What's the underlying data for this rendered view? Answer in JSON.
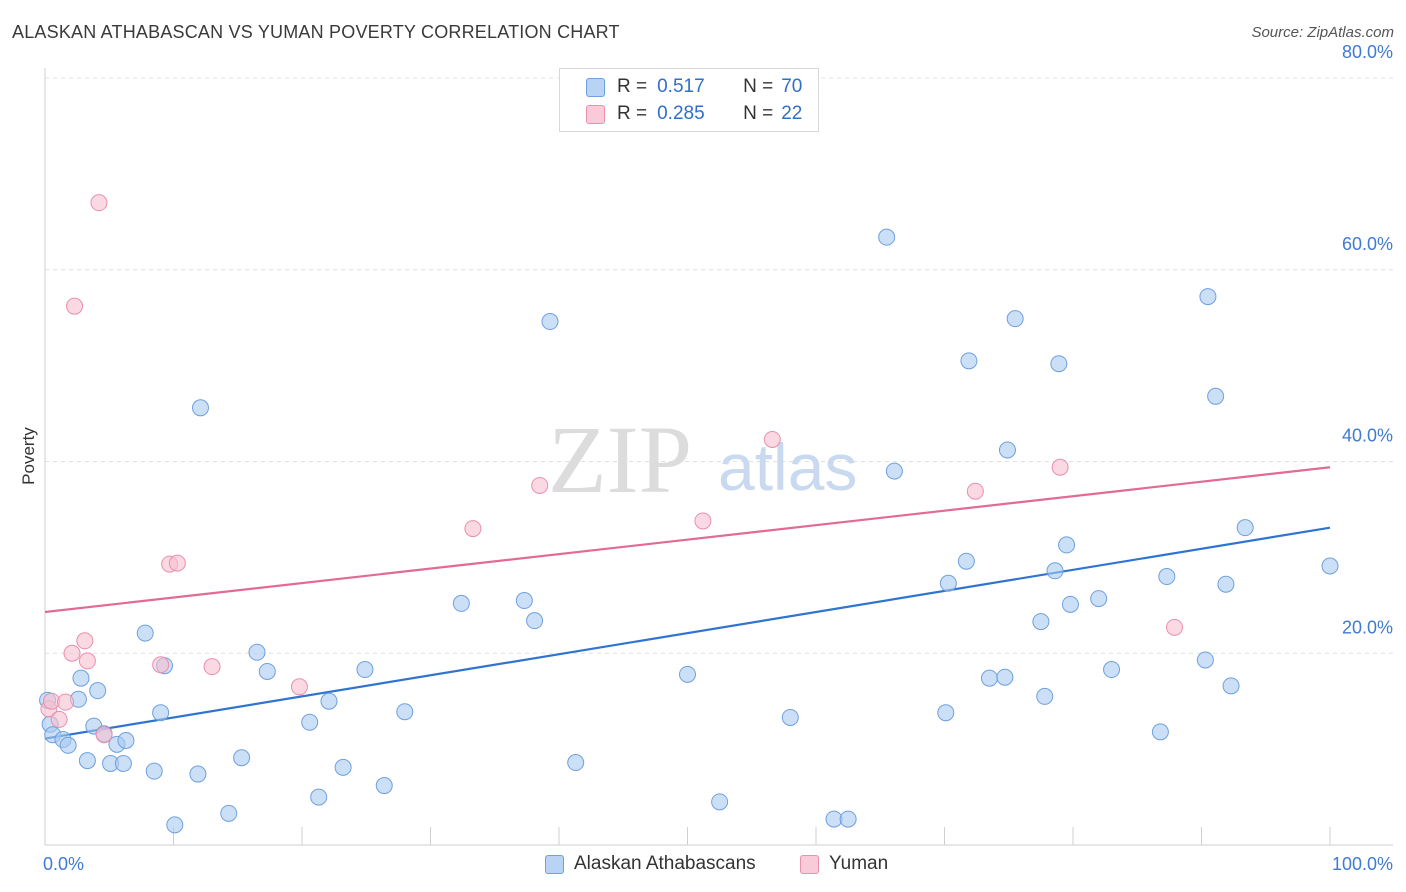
{
  "title": "ALASKAN ATHABASCAN VS YUMAN POVERTY CORRELATION CHART",
  "source": "Source: ZipAtlas.com",
  "watermark": {
    "zip": "ZIP",
    "atlas": "atlas"
  },
  "legend": {
    "rows": [
      {
        "r_label": "R =",
        "r_value": "0.517",
        "n_label": "N =",
        "n_value": "70"
      },
      {
        "r_label": "R =",
        "r_value": "0.285",
        "n_label": "N =",
        "n_value": "22"
      }
    ]
  },
  "bottom_legend": {
    "series1": "Alaskan Athabascans",
    "series2": "Yuman"
  },
  "colors": {
    "series1_fill": "#a9c9f0",
    "series1_stroke": "#6fa0df",
    "series1_line": "#2f74d0",
    "series2_fill": "#f7bfd0",
    "series2_stroke": "#ea8fae",
    "series2_line": "#e26a95",
    "axis_label": "#3f7ad3",
    "grid": "#e0e0e0"
  },
  "chart_data": {
    "type": "scatter",
    "title": "ALASKAN ATHABASCAN VS YUMAN POVERTY CORRELATION CHART",
    "xlabel": "",
    "ylabel": "Poverty",
    "xlim": [
      0,
      100
    ],
    "ylim": [
      0,
      80
    ],
    "x_tick_labels": [
      "0.0%",
      "100.0%"
    ],
    "y_ticks": [
      20,
      40,
      60,
      80
    ],
    "y_tick_labels": [
      "20.0%",
      "40.0%",
      "60.0%",
      "80.0%"
    ],
    "series": [
      {
        "name": "Alaskan Athabascans",
        "r": 0.517,
        "n": 70,
        "trend": {
          "x": [
            0,
            100
          ],
          "y": [
            11.1,
            33.1
          ]
        },
        "points": [
          [
            0.2,
            15.1
          ],
          [
            0.4,
            12.6
          ],
          [
            0.6,
            11.5
          ],
          [
            1.4,
            11.0
          ],
          [
            1.8,
            10.4
          ],
          [
            2.6,
            15.2
          ],
          [
            2.8,
            17.4
          ],
          [
            3.3,
            8.8
          ],
          [
            3.8,
            12.4
          ],
          [
            4.1,
            16.1
          ],
          [
            4.6,
            11.6
          ],
          [
            5.1,
            8.5
          ],
          [
            5.6,
            10.5
          ],
          [
            6.1,
            8.5
          ],
          [
            6.3,
            10.9
          ],
          [
            7.8,
            22.1
          ],
          [
            8.5,
            7.7
          ],
          [
            9.0,
            13.8
          ],
          [
            9.3,
            18.7
          ],
          [
            10.1,
            2.1
          ],
          [
            11.9,
            7.4
          ],
          [
            12.1,
            45.6
          ],
          [
            14.3,
            3.3
          ],
          [
            15.3,
            9.1
          ],
          [
            16.5,
            20.1
          ],
          [
            17.3,
            18.1
          ],
          [
            20.6,
            12.8
          ],
          [
            21.3,
            5.0
          ],
          [
            22.1,
            15.0
          ],
          [
            23.2,
            8.1
          ],
          [
            24.9,
            18.3
          ],
          [
            26.4,
            6.2
          ],
          [
            28.0,
            13.9
          ],
          [
            32.4,
            25.2
          ],
          [
            37.3,
            25.5
          ],
          [
            38.1,
            23.4
          ],
          [
            39.3,
            54.6
          ],
          [
            41.3,
            8.6
          ],
          [
            50.0,
            17.8
          ],
          [
            52.5,
            4.5
          ],
          [
            58.0,
            13.3
          ],
          [
            61.4,
            2.7
          ],
          [
            62.5,
            2.7
          ],
          [
            65.5,
            63.4
          ],
          [
            66.1,
            39.0
          ],
          [
            70.1,
            13.8
          ],
          [
            70.3,
            27.3
          ],
          [
            71.7,
            29.6
          ],
          [
            71.9,
            50.5
          ],
          [
            73.5,
            17.4
          ],
          [
            74.7,
            17.5
          ],
          [
            74.9,
            41.2
          ],
          [
            75.5,
            54.9
          ],
          [
            77.5,
            23.3
          ],
          [
            77.8,
            15.5
          ],
          [
            78.6,
            28.6
          ],
          [
            78.9,
            50.2
          ],
          [
            79.5,
            31.3
          ],
          [
            79.8,
            25.1
          ],
          [
            82.0,
            25.7
          ],
          [
            83.0,
            18.3
          ],
          [
            86.8,
            11.8
          ],
          [
            87.3,
            28.0
          ],
          [
            90.3,
            19.3
          ],
          [
            90.5,
            57.2
          ],
          [
            91.1,
            46.8
          ],
          [
            91.9,
            27.2
          ],
          [
            92.3,
            16.6
          ],
          [
            93.4,
            33.1
          ],
          [
            100.0,
            29.1
          ]
        ]
      },
      {
        "name": "Yuman",
        "r": 0.285,
        "n": 22,
        "trend": {
          "x": [
            0,
            100
          ],
          "y": [
            24.3,
            39.4
          ]
        },
        "points": [
          [
            0.3,
            14.2
          ],
          [
            0.5,
            15.0
          ],
          [
            1.1,
            13.1
          ],
          [
            1.6,
            14.9
          ],
          [
            2.1,
            20.0
          ],
          [
            2.3,
            56.2
          ],
          [
            3.1,
            21.3
          ],
          [
            3.3,
            19.2
          ],
          [
            4.2,
            67.0
          ],
          [
            4.6,
            11.5
          ],
          [
            9.0,
            18.8
          ],
          [
            9.7,
            29.3
          ],
          [
            10.3,
            29.4
          ],
          [
            13.0,
            18.6
          ],
          [
            19.8,
            16.5
          ],
          [
            33.3,
            33.0
          ],
          [
            38.5,
            37.5
          ],
          [
            51.2,
            33.8
          ],
          [
            56.6,
            42.3
          ],
          [
            72.4,
            36.9
          ],
          [
            79.0,
            39.4
          ],
          [
            87.9,
            22.7
          ]
        ]
      }
    ]
  }
}
